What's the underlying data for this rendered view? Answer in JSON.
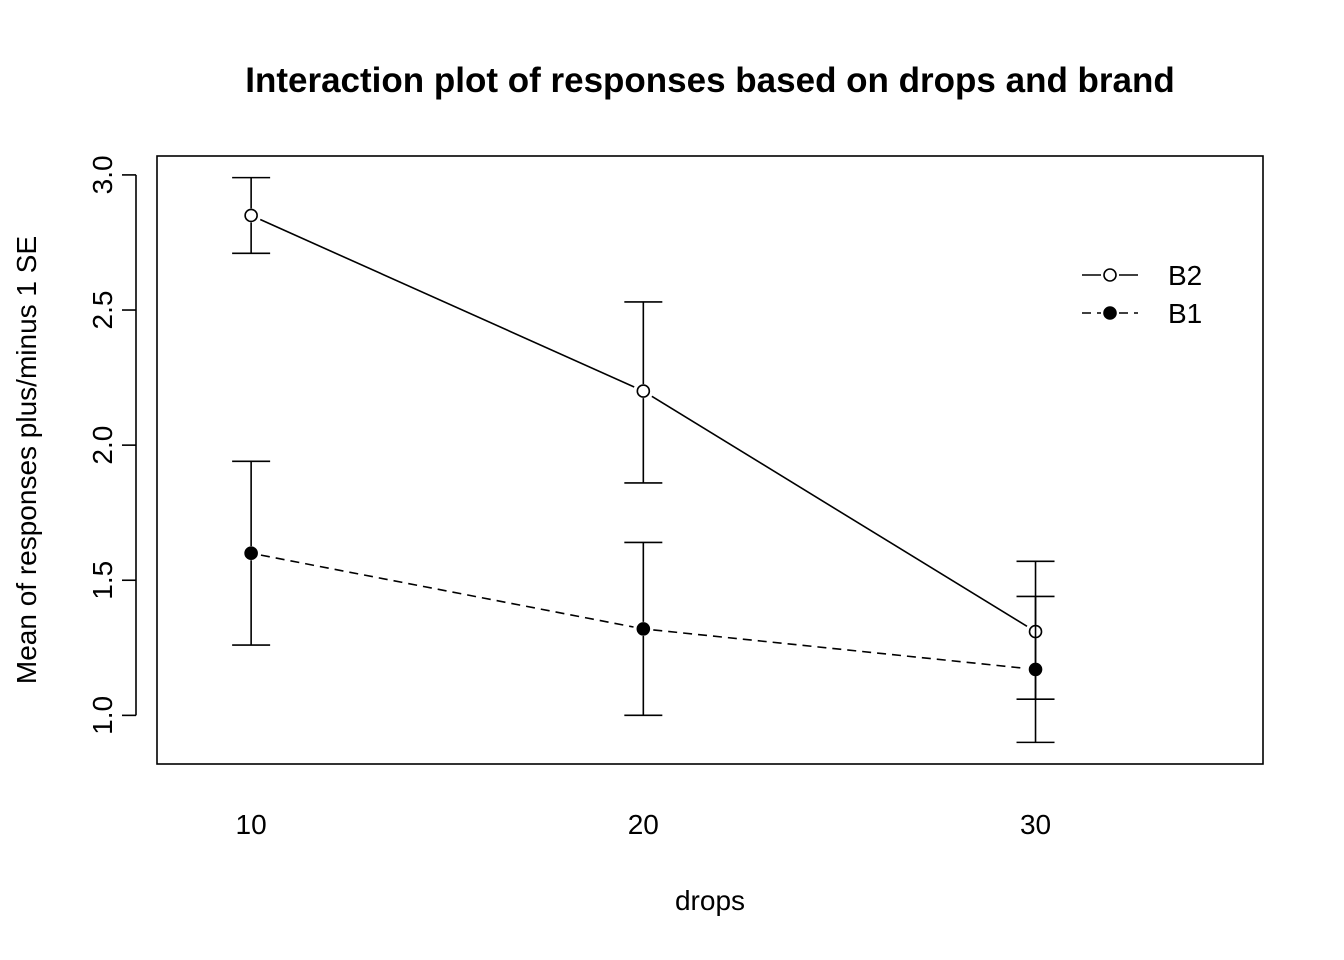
{
  "chart_data": {
    "type": "line",
    "title": "Interaction plot of responses based on drops and brand",
    "xlabel": "drops",
    "ylabel": "Mean of  responses plus/minus 1 SE",
    "categories": [
      "10",
      "20",
      "30"
    ],
    "x_values": [
      10,
      20,
      30
    ],
    "xlim": [
      7.6,
      35.8
    ],
    "ylim": [
      0.82,
      3.07
    ],
    "y_ticks": [
      1.0,
      1.5,
      2.0,
      2.5,
      3.0
    ],
    "y_tick_labels": [
      "1.0",
      "1.5",
      "2.0",
      "2.5",
      "3.0"
    ],
    "grid": false,
    "legend_position": "top-right",
    "series": [
      {
        "name": "B2",
        "line_style": "solid",
        "marker": "open-circle",
        "means": [
          2.85,
          2.2,
          1.31
        ],
        "upper": [
          2.99,
          2.53,
          1.57
        ],
        "lower": [
          2.71,
          1.86,
          1.06
        ]
      },
      {
        "name": "B1",
        "line_style": "dashed",
        "marker": "filled-circle",
        "means": [
          1.6,
          1.32,
          1.17
        ],
        "upper": [
          1.94,
          1.64,
          1.44
        ],
        "lower": [
          1.26,
          1.0,
          0.9
        ]
      }
    ]
  }
}
